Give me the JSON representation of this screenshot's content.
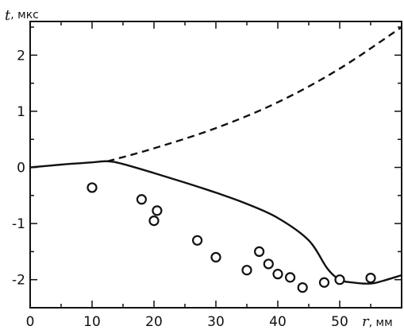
{
  "chart_data": {
    "type": "line",
    "title": "",
    "xlabel": "r",
    "xlabel_unit": ", мм",
    "ylabel": "t",
    "ylabel_unit": ", мкс",
    "xlim": [
      0,
      60
    ],
    "ylim": [
      -2.5,
      2.6
    ],
    "grid": false,
    "x_ticks": [
      0,
      10,
      20,
      30,
      40,
      50
    ],
    "y_ticks": [
      -2,
      -1,
      0,
      1,
      2
    ],
    "x_tick_labels": [
      "0",
      "10",
      "20",
      "30",
      "40",
      "50"
    ],
    "y_tick_labels": [
      "-2",
      "-1",
      "0",
      "1",
      "2"
    ],
    "series": [
      {
        "style": "solid",
        "x": [
          0,
          5,
          10,
          12.5,
          15,
          20,
          25,
          30,
          35,
          40,
          45,
          48,
          50,
          52,
          55,
          57,
          60
        ],
        "y": [
          0,
          0.05,
          0.09,
          0.11,
          0.06,
          -0.1,
          -0.27,
          -0.45,
          -0.65,
          -0.9,
          -1.3,
          -1.8,
          -2.0,
          -2.05,
          -2.07,
          -2.02,
          -1.92
        ]
      },
      {
        "style": "dashed",
        "x": [
          12.5,
          20,
          30,
          40,
          50,
          60
        ],
        "y": [
          0.11,
          0.34,
          0.7,
          1.16,
          1.76,
          2.5
        ]
      },
      {
        "style": "markers",
        "x": [
          10,
          18,
          20,
          20.5,
          27,
          30,
          35,
          37,
          38.5,
          40,
          42,
          44,
          47.5,
          50,
          55
        ],
        "y": [
          -0.36,
          -0.57,
          -0.95,
          -0.77,
          -1.3,
          -1.6,
          -1.83,
          -1.5,
          -1.72,
          -1.9,
          -1.96,
          -2.14,
          -2.05,
          -2.0,
          -1.97
        ]
      }
    ]
  }
}
